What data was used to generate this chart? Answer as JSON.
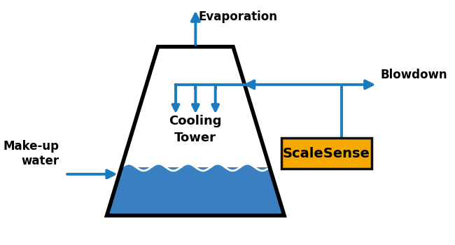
{
  "bg_color": "#ffffff",
  "tower_border_color": "#000000",
  "water_color": "#3a7fc1",
  "arrow_color": "#1a7bbf",
  "scalesense_bg": "#f5a800",
  "scalesense_border": "#111111",
  "scalesense_text": "ScaleSense",
  "evaporation_text": "Evaporation",
  "blowdown_text": "Blowdown",
  "makeup_text": "Make-up\nwater",
  "cooling_tower_text": "Cooling\nTower",
  "lw_tower": 4.0,
  "lw_pipe": 2.8,
  "arrow_mutation": 20
}
